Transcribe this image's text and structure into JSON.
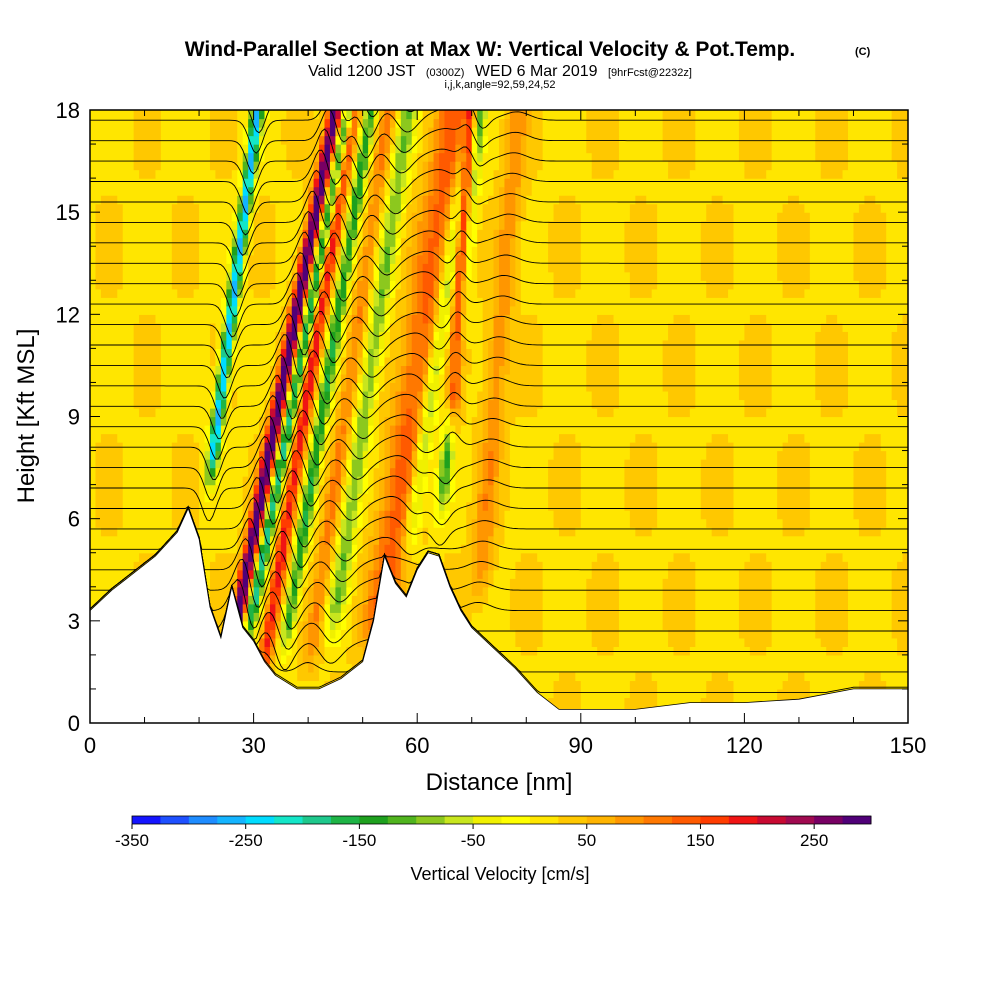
{
  "chart_data": {
    "type": "heatmap",
    "title": "Wind-Parallel Section at Max W: Vertical Velocity & Pot.Temp.",
    "title_mark": "(C)",
    "subtitle_parts": [
      "Valid 1200 JST",
      "(0300Z)",
      "WED 6 Mar 2019",
      "[9hrFcst@2232z]"
    ],
    "info_line": "i,j,k,angle=92,59,24,52",
    "xlabel": "Distance [nm]",
    "ylabel": "Height [Kft MSL]",
    "xlim": [
      0,
      150
    ],
    "ylim": [
      0,
      18
    ],
    "x_ticks": [
      "0",
      "30",
      "60",
      "90",
      "120",
      "150"
    ],
    "y_ticks": [
      "0",
      "3",
      "6",
      "9",
      "12",
      "15",
      "18"
    ],
    "colorbar": {
      "label": "Vertical Velocity [cm/s]",
      "min": -350,
      "max": 300,
      "step": 25,
      "tick_labels": [
        "-350",
        "-250",
        "-150",
        "-50",
        "50",
        "150",
        "250"
      ],
      "colors": [
        "#1414ff",
        "#1e50ff",
        "#1e8cff",
        "#14b4ff",
        "#00dcff",
        "#14e6c8",
        "#1ec88c",
        "#1eb446",
        "#1ea01e",
        "#50b41e",
        "#8cc81e",
        "#c8e61e",
        "#f0f000",
        "#ffff00",
        "#ffe600",
        "#ffc800",
        "#ffb400",
        "#ff9600",
        "#ff7800",
        "#ff5a00",
        "#ff3c00",
        "#f01414",
        "#c80a32",
        "#a00a50",
        "#780064",
        "#500078"
      ]
    },
    "terrain_kft": [
      [
        0,
        3.3
      ],
      [
        4,
        3.9
      ],
      [
        8,
        4.4
      ],
      [
        12,
        4.9
      ],
      [
        16,
        5.6
      ],
      [
        18,
        6.3
      ],
      [
        20,
        5.4
      ],
      [
        22,
        3.4
      ],
      [
        24,
        2.5
      ],
      [
        26,
        4.0
      ],
      [
        28,
        2.8
      ],
      [
        30,
        2.4
      ],
      [
        32,
        1.8
      ],
      [
        34,
        1.4
      ],
      [
        38,
        1.0
      ],
      [
        42,
        1.0
      ],
      [
        46,
        1.3
      ],
      [
        50,
        1.8
      ],
      [
        52,
        3.0
      ],
      [
        54,
        4.9
      ],
      [
        56,
        4.1
      ],
      [
        58,
        3.7
      ],
      [
        60,
        4.5
      ],
      [
        62,
        5.0
      ],
      [
        64,
        4.9
      ],
      [
        66,
        4.0
      ],
      [
        68,
        3.3
      ],
      [
        70,
        2.8
      ],
      [
        74,
        2.2
      ],
      [
        78,
        1.6
      ],
      [
        82,
        0.9
      ],
      [
        86,
        0.4
      ],
      [
        100,
        0.4
      ],
      [
        110,
        0.6
      ],
      [
        120,
        0.6
      ],
      [
        130,
        0.7
      ],
      [
        140,
        1.0
      ],
      [
        150,
        1.0
      ]
    ],
    "updraft_bands": [
      {
        "x0": 24.0,
        "y0": 0.5,
        "slope": 1.2,
        "amp": 290,
        "sigma": 1.3
      },
      {
        "x0": 31.0,
        "y0": 0.8,
        "slope": 1.0,
        "amp": 170,
        "sigma": 1.3
      },
      {
        "x0": 39.5,
        "y0": 1.0,
        "slope": 0.9,
        "amp": 80,
        "sigma": 1.5
      },
      {
        "x0": 52.0,
        "y0": 1.5,
        "slope": 0.9,
        "amp": 110,
        "sigma": 3.5
      },
      {
        "x0": 66.0,
        "y0": 8.0,
        "slope": 0.4,
        "amp": 250,
        "sigma": 1.2
      },
      {
        "x0": 71.0,
        "y0": 3.0,
        "slope": 0.5,
        "amp": 70,
        "sigma": 2.0
      }
    ],
    "downdraft_bands": [
      {
        "x0": 21.5,
        "y0": 6.5,
        "slope": 0.8,
        "amp": 280,
        "sigma": 1.1
      },
      {
        "x0": 28.0,
        "y0": 1.8,
        "slope": 1.2,
        "amp": 220,
        "sigma": 1.1
      },
      {
        "x0": 35.0,
        "y0": 1.5,
        "slope": 1.0,
        "amp": 170,
        "sigma": 1.2
      },
      {
        "x0": 44.0,
        "y0": 2.0,
        "slope": 0.9,
        "amp": 120,
        "sigma": 1.6
      },
      {
        "x0": 58.0,
        "y0": 4.5,
        "slope": 0.9,
        "amp": 120,
        "sigma": 1.5
      },
      {
        "x0": 64.0,
        "y0": 5.5,
        "slope": 0.6,
        "amp": 150,
        "sigma": 1.2
      }
    ],
    "isentrope_count": 30,
    "grid_lines": false
  }
}
